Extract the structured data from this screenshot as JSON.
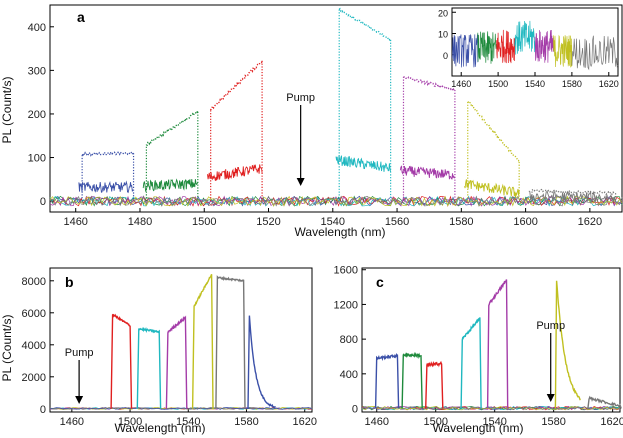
{
  "chart_data": [
    {
      "panel": "a",
      "type": "line",
      "xlabel": "Wavelength (nm)",
      "ylabel": "PL (Count/s)",
      "xlim": [
        1452,
        1630
      ],
      "ylim": [
        -25,
        450
      ],
      "xticks": [
        1460,
        1480,
        1500,
        1520,
        1540,
        1560,
        1580,
        1600,
        1620
      ],
      "yticks": [
        0,
        100,
        200,
        300,
        400
      ],
      "annotation": {
        "text": "Pump",
        "x": 1530
      },
      "series": [
        {
          "color": "#3b50a8",
          "style": "dotted",
          "x": [
            1462,
            1478
          ],
          "start": 108,
          "end": 110
        },
        {
          "color": "#1e8a3c",
          "style": "dotted",
          "x": [
            1482,
            1498
          ],
          "start": 130,
          "end": 205
        },
        {
          "color": "#e02020",
          "style": "dotted",
          "x": [
            1502,
            1518
          ],
          "start": 210,
          "end": 322
        },
        {
          "color": "#20b8c0",
          "style": "dotted",
          "x": [
            1542,
            1558
          ],
          "start": 440,
          "end": 370
        },
        {
          "color": "#a43ca8",
          "style": "dotted",
          "x": [
            1562,
            1578
          ],
          "start": 285,
          "end": 255
        },
        {
          "color": "#c0c020",
          "style": "dotted",
          "x": [
            1582,
            1598
          ],
          "start": 230,
          "end": 90
        },
        {
          "color": "#777777",
          "style": "dotted",
          "x": [
            1602,
            1628
          ],
          "start": 25,
          "end": 18
        },
        {
          "color": "#3b50a8",
          "style": "solid",
          "x": [
            1461,
            1478
          ],
          "start": 32,
          "end": 32
        },
        {
          "color": "#1e8a3c",
          "style": "solid",
          "x": [
            1481,
            1498
          ],
          "start": 35,
          "end": 40
        },
        {
          "color": "#e02020",
          "style": "solid",
          "x": [
            1501,
            1518
          ],
          "start": 55,
          "end": 75
        },
        {
          "color": "#20b8c0",
          "style": "solid",
          "x": [
            1541,
            1558
          ],
          "start": 95,
          "end": 75
        },
        {
          "color": "#a43ca8",
          "style": "solid",
          "x": [
            1561,
            1578
          ],
          "start": 70,
          "end": 60
        },
        {
          "color": "#c0c020",
          "style": "solid",
          "x": [
            1581,
            1598
          ],
          "start": 40,
          "end": 18
        },
        {
          "color": "#777777",
          "style": "solid",
          "x": [
            1601,
            1628
          ],
          "start": 12,
          "end": 8
        }
      ],
      "inset": {
        "xlim": [
          1450,
          1630
        ],
        "ylim": [
          -10,
          22
        ],
        "xticks": [
          1460,
          1500,
          1540,
          1580,
          1620
        ],
        "yticks": [
          0,
          10,
          20
        ],
        "series": [
          {
            "color": "#3b50a8",
            "x": [
              1450,
              1478
            ],
            "level": 2
          },
          {
            "color": "#1e8a3c",
            "x": [
              1478,
              1498
            ],
            "level": 3
          },
          {
            "color": "#e02020",
            "x": [
              1498,
              1518
            ],
            "level": 4
          },
          {
            "color": "#20b8c0",
            "x": [
              1518,
              1540
            ],
            "level": 8
          },
          {
            "color": "#a43ca8",
            "x": [
              1540,
              1560
            ],
            "level": 4
          },
          {
            "color": "#c0c020",
            "x": [
              1560,
              1580
            ],
            "level": 2
          },
          {
            "color": "#777777",
            "x": [
              1580,
              1630
            ],
            "level": 1
          }
        ]
      }
    },
    {
      "panel": "b",
      "type": "line",
      "xlabel": "Wavelength (nm)",
      "ylabel": "PL (Count/s)",
      "xlim": [
        1445,
        1625
      ],
      "ylim": [
        -200,
        8800
      ],
      "xticks": [
        1460,
        1500,
        1540,
        1580,
        1620
      ],
      "yticks": [
        0,
        2000,
        4000,
        6000,
        8000
      ],
      "annotation": {
        "text": "Pump",
        "x": 1465
      },
      "series": [
        {
          "color": "#e02020",
          "x": [
            1488,
            1500
          ],
          "start": 5900,
          "end": 5200
        },
        {
          "color": "#20b8c0",
          "x": [
            1506,
            1520
          ],
          "start": 5000,
          "end": 4800
        },
        {
          "color": "#a43ca8",
          "x": [
            1526,
            1538
          ],
          "start": 4800,
          "end": 5700
        },
        {
          "color": "#c0c020",
          "x": [
            1544,
            1556
          ],
          "start": 6400,
          "end": 8400
        },
        {
          "color": "#777777",
          "x": [
            1560,
            1578
          ],
          "start": 8200,
          "end": 8000
        },
        {
          "color": "#3b50a8",
          "x": [
            1582,
            1600
          ],
          "start": 5800,
          "end": 0
        }
      ]
    },
    {
      "panel": "c",
      "type": "line",
      "xlabel": "Wavelength (nm)",
      "ylabel": "",
      "xlim": [
        1450,
        1625
      ],
      "ylim": [
        -40,
        1620
      ],
      "xticks": [
        1460,
        1500,
        1540,
        1580,
        1620
      ],
      "yticks": [
        0,
        400,
        800,
        1200,
        1600
      ],
      "annotation": {
        "text": "Pump",
        "x": 1578
      },
      "series": [
        {
          "color": "#3b50a8",
          "x": [
            1460,
            1474
          ],
          "start": 580,
          "end": 610
        },
        {
          "color": "#1e8a3c",
          "x": [
            1478,
            1490
          ],
          "start": 620,
          "end": 610
        },
        {
          "color": "#e02020",
          "x": [
            1494,
            1504
          ],
          "start": 500,
          "end": 520
        },
        {
          "color": "#20b8c0",
          "x": [
            1518,
            1530
          ],
          "start": 800,
          "end": 1040
        },
        {
          "color": "#a43ca8",
          "x": [
            1536,
            1548
          ],
          "start": 1200,
          "end": 1480
        },
        {
          "color": "#c0c020",
          "x": [
            1582,
            1598
          ],
          "start": 1480,
          "end": 120
        },
        {
          "color": "#777777",
          "x": [
            1604,
            1625
          ],
          "start": 120,
          "end": 30
        }
      ]
    }
  ],
  "panel_labels": {
    "a": "a",
    "b": "b",
    "c": "c"
  },
  "texts": {
    "a_xlabel": "Wavelength (nm)",
    "a_ylabel": "PL (Count/s)",
    "b_xlabel": "Wavelength (nm)",
    "b_ylabel": "PL (Count/s)",
    "c_xlabel": "Wavelength (nm)",
    "pump": "Pump"
  }
}
